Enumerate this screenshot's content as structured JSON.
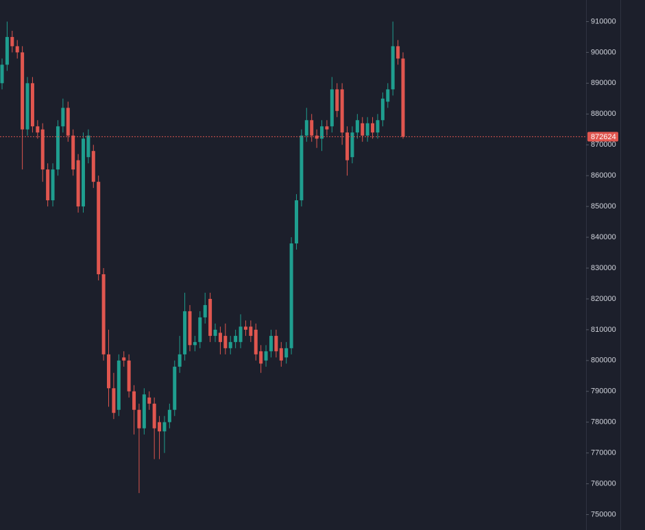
{
  "chart_data": {
    "type": "candlestick",
    "up_color": "#1f9e8f",
    "down_color": "#e0564f",
    "ylim": [
      745000,
      917000
    ],
    "yticks": [
      750000,
      760000,
      770000,
      780000,
      790000,
      800000,
      810000,
      820000,
      830000,
      840000,
      850000,
      860000,
      870000,
      880000,
      890000,
      900000,
      910000
    ],
    "grid": false,
    "last_price": 872624,
    "open": [
      890000,
      896000,
      905000,
      902000,
      900000,
      875000,
      890000,
      876000,
      875000,
      862000,
      852000,
      862000,
      876000,
      882000,
      873000,
      865000,
      850000,
      866000,
      868000,
      858000,
      828000,
      802000,
      791000,
      784000,
      801000,
      800000,
      790000,
      784000,
      778000,
      788000,
      786000,
      780000,
      777000,
      780000,
      784000,
      798000,
      802000,
      816000,
      805000,
      806000,
      814000,
      820000,
      808000,
      809000,
      808000,
      804000,
      806000,
      806000,
      811000,
      811000,
      810000,
      803000,
      800000,
      803000,
      808000,
      804000,
      801000,
      804000,
      838000,
      852000,
      873000,
      878000,
      873000,
      872000,
      876000,
      876000,
      888000,
      888000,
      874000,
      866000,
      874000,
      877000,
      873000,
      877000,
      874000,
      878000,
      884000,
      888000,
      902000,
      898000
    ],
    "high": [
      898000,
      910000,
      907000,
      904000,
      902000,
      892000,
      892000,
      878000,
      877000,
      864000,
      864000,
      878000,
      885000,
      884000,
      875000,
      867000,
      874000,
      875000,
      870000,
      860000,
      830000,
      810000,
      796000,
      802000,
      803000,
      802000,
      792000,
      786000,
      791000,
      790000,
      788000,
      782000,
      782000,
      786000,
      800000,
      808000,
      822000,
      818000,
      808000,
      816000,
      822000,
      822000,
      812000,
      811000,
      812000,
      808000,
      810000,
      815000,
      813000,
      813000,
      812000,
      805000,
      805000,
      810000,
      810000,
      806000,
      806000,
      840000,
      854000,
      875000,
      882000,
      880000,
      875000,
      878000,
      878000,
      892000,
      890000,
      890000,
      876000,
      876000,
      880000,
      879000,
      879000,
      879000,
      880000,
      887000,
      890000,
      910000,
      904000,
      900000
    ],
    "low": [
      888000,
      894000,
      900000,
      898000,
      862000,
      873000,
      874000,
      872000,
      858000,
      850000,
      850000,
      860000,
      874000,
      871000,
      860000,
      848000,
      848000,
      864000,
      856000,
      826000,
      800000,
      785000,
      781000,
      782000,
      798000,
      788000,
      776000,
      757000,
      776000,
      784000,
      768000,
      768000,
      770000,
      778000,
      782000,
      796000,
      800000,
      803000,
      803000,
      804000,
      812000,
      806000,
      806000,
      802000,
      802000,
      802000,
      804000,
      804000,
      808000,
      806000,
      800000,
      796000,
      798000,
      801000,
      801000,
      798000,
      799000,
      802000,
      836000,
      850000,
      871000,
      871000,
      869000,
      868000,
      873000,
      874000,
      879000,
      870000,
      860000,
      864000,
      872000,
      871000,
      871000,
      872000,
      872000,
      876000,
      882000,
      886000,
      896000,
      872000
    ],
    "close": [
      896000,
      905000,
      902000,
      900000,
      875000,
      890000,
      876000,
      874000,
      862000,
      852000,
      862000,
      876000,
      882000,
      873000,
      862000,
      850000,
      872000,
      873000,
      858000,
      828000,
      802000,
      791000,
      783000,
      800000,
      800000,
      790000,
      784000,
      778000,
      789000,
      786000,
      778000,
      777000,
      780000,
      784000,
      798000,
      802000,
      816000,
      805000,
      806000,
      814000,
      818000,
      808000,
      810000,
      806000,
      804000,
      806000,
      808000,
      811000,
      810000,
      808000,
      802000,
      799000,
      803000,
      808000,
      803000,
      800000,
      804000,
      838000,
      852000,
      873000,
      878000,
      873000,
      872000,
      876000,
      875000,
      888000,
      881000,
      874000,
      865000,
      874000,
      878000,
      873000,
      877000,
      874000,
      878000,
      885000,
      888000,
      902000,
      898000,
      872624
    ]
  }
}
